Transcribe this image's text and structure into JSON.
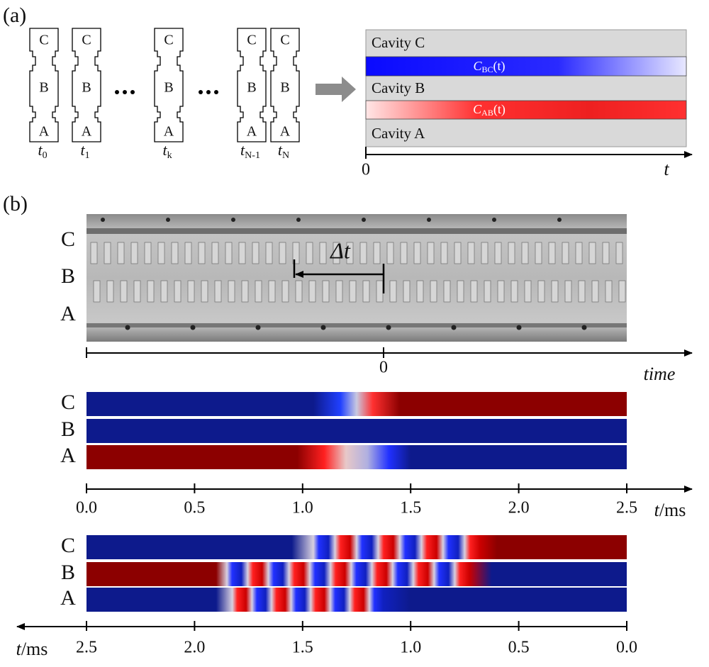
{
  "panel_a": {
    "label": "(a)",
    "towers": [
      {
        "cavities": [
          "C",
          "B",
          "A"
        ],
        "time": {
          "base": "t",
          "sub": "0"
        }
      },
      {
        "cavities": [
          "C",
          "B",
          "A"
        ],
        "time": {
          "base": "t",
          "sub": "1"
        }
      },
      {
        "cavities": [
          "C",
          "B",
          "A"
        ],
        "time": {
          "base": "t",
          "sub": "k"
        }
      },
      {
        "cavities": [
          "C",
          "B",
          "A"
        ],
        "time": {
          "base": "t",
          "sub": "N-1"
        }
      },
      {
        "cavities": [
          "C",
          "B",
          "A"
        ],
        "time": {
          "base": "t",
          "sub": "N"
        }
      }
    ],
    "coupling_diagram": {
      "cavities": [
        "Cavity C",
        "Cavity B",
        "Cavity A"
      ],
      "couplings": [
        {
          "base": "C",
          "sub": "BC",
          "arg": "(t)"
        },
        {
          "base": "C",
          "sub": "AB",
          "arg": "(t)"
        }
      ],
      "axis": {
        "origin": "0",
        "label": "t"
      }
    }
  },
  "panel_b": {
    "label": "(b)",
    "photo": {
      "cavities": [
        "C",
        "B",
        "A"
      ],
      "delay": "Δt",
      "axis": {
        "origin": "0",
        "label": "time"
      }
    },
    "heatmaps": [
      {
        "cavities": [
          "C",
          "B",
          "A"
        ],
        "ticks": [
          "0.0",
          "0.5",
          "1.0",
          "1.5",
          "2.0",
          "2.5"
        ],
        "axis_label": {
          "var": "t",
          "unit": "/ms"
        }
      },
      {
        "cavities": [
          "C",
          "B",
          "A"
        ],
        "ticks": [
          "2.5",
          "2.0",
          "1.5",
          "1.0",
          "0.5",
          "0.0"
        ],
        "axis_label": {
          "var": "t",
          "unit": "/ms"
        }
      }
    ]
  }
}
